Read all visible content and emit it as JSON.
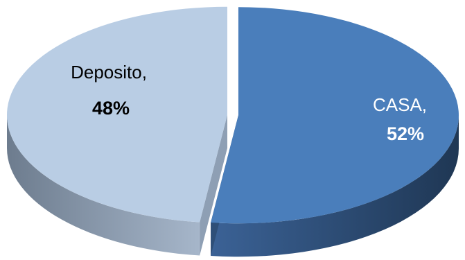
{
  "chart_data": {
    "type": "pie",
    "title": "",
    "slices": [
      {
        "label": "CASA",
        "value": 52,
        "display_name": "CASA,",
        "display_value": "52%",
        "color": "#4a7ebb",
        "side_color": "#2e4f78",
        "text_color": "#ffffff"
      },
      {
        "label": "Deposito",
        "value": 48,
        "display_name": "Deposito,",
        "display_value": "48%",
        "color": "#b9cde4",
        "side_color": "#8e9fb4",
        "text_color": "#000000"
      }
    ],
    "style": "3d-exploded",
    "legend": "none"
  }
}
